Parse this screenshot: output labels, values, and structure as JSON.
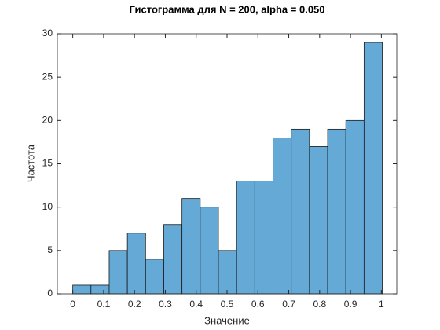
{
  "chart_data": {
    "type": "histogram",
    "title": "Гистограмма для N = 200, alpha = 0.050",
    "xlabel": "Значение",
    "ylabel": "Частота",
    "bins": [
      0,
      0.059,
      0.118,
      0.177,
      0.236,
      0.295,
      0.354,
      0.413,
      0.472,
      0.531,
      0.59,
      0.649,
      0.708,
      0.767,
      0.826,
      0.885,
      0.944,
      1.003
    ],
    "values": [
      1,
      1,
      5,
      7,
      4,
      8,
      11,
      10,
      5,
      13,
      13,
      18,
      19,
      17,
      19,
      20,
      29
    ],
    "color": "#65a9d7",
    "xlim": [
      -0.05,
      1.05
    ],
    "xticks": [
      0,
      0.1,
      0.2,
      0.3,
      0.4,
      0.5,
      0.6,
      0.7,
      0.8,
      0.9,
      1
    ],
    "ylim": [
      0,
      30
    ],
    "yticks": [
      0,
      5,
      10,
      15,
      20,
      25,
      30
    ]
  }
}
